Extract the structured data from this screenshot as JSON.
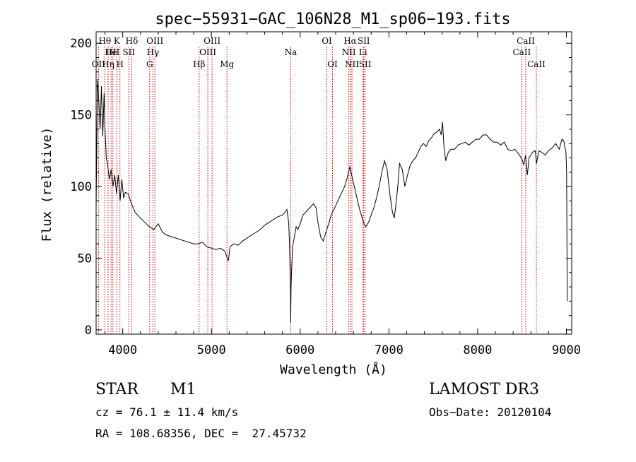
{
  "chart_data": {
    "type": "line",
    "title": "spec−55931−GAC_106N28_M1_sp06−193.fits",
    "xlabel": "Wavelength (Å)",
    "ylabel": "Flux (relative)",
    "xlim": [
      3700,
      9060
    ],
    "ylim": [
      -3,
      208
    ],
    "x_ticks": [
      4000,
      5000,
      6000,
      7000,
      8000,
      9000
    ],
    "y_ticks": [
      0,
      50,
      100,
      150,
      200
    ],
    "series": [
      {
        "name": "spectrum",
        "color": "#000000",
        "x": [
          3700,
          3715,
          3730,
          3745,
          3760,
          3775,
          3790,
          3800,
          3815,
          3830,
          3850,
          3870,
          3890,
          3910,
          3930,
          3950,
          3970,
          3990,
          4010,
          4030,
          4060,
          4100,
          4140,
          4200,
          4250,
          4300,
          4350,
          4400,
          4450,
          4500,
          4550,
          4600,
          4650,
          4700,
          4750,
          4800,
          4850,
          4900,
          4950,
          5000,
          5050,
          5100,
          5150,
          5190,
          5210,
          5250,
          5300,
          5350,
          5400,
          5450,
          5500,
          5550,
          5600,
          5650,
          5700,
          5750,
          5800,
          5830,
          5850,
          5870,
          5880,
          5890,
          5893,
          5897,
          5905,
          5915,
          5935,
          5955,
          5975,
          6000,
          6030,
          6060,
          6090,
          6120,
          6150,
          6180,
          6200,
          6230,
          6260,
          6290,
          6320,
          6350,
          6380,
          6410,
          6440,
          6470,
          6500,
          6530,
          6560,
          6580,
          6610,
          6640,
          6670,
          6700,
          6720,
          6740,
          6770,
          6800,
          6830,
          6860,
          6890,
          6920,
          6950,
          6980,
          7010,
          7040,
          7060,
          7080,
          7100,
          7120,
          7150,
          7180,
          7210,
          7240,
          7270,
          7300,
          7330,
          7360,
          7390,
          7420,
          7450,
          7480,
          7510,
          7540,
          7570,
          7590,
          7605,
          7620,
          7640,
          7670,
          7700,
          7740,
          7780,
          7820,
          7860,
          7900,
          7940,
          7980,
          8020,
          8060,
          8100,
          8140,
          8180,
          8220,
          8260,
          8300,
          8340,
          8380,
          8420,
          8460,
          8500,
          8520,
          8540,
          8560,
          8580,
          8620,
          8650,
          8663,
          8690,
          8720,
          8760,
          8800,
          8840,
          8880,
          8920,
          8950,
          8970,
          8985,
          8995,
          9003,
          9010
        ],
        "y": [
          85,
          175,
          160,
          140,
          170,
          135,
          165,
          140,
          120,
          115,
          105,
          112,
          100,
          108,
          95,
          108,
          90,
          105,
          92,
          96,
          95,
          88,
          82,
          78,
          75,
          72,
          70,
          74,
          68,
          66,
          65,
          64,
          63,
          62,
          61,
          60,
          60,
          61,
          58,
          57,
          56,
          57,
          55,
          48,
          58,
          60,
          59,
          62,
          64,
          66,
          68,
          70,
          73,
          75,
          77,
          79,
          80,
          82,
          84,
          75,
          60,
          30,
          5,
          30,
          45,
          58,
          65,
          72,
          70,
          74,
          80,
          82,
          84,
          86,
          88,
          85,
          75,
          65,
          62,
          68,
          74,
          80,
          84,
          88,
          92,
          96,
          100,
          106,
          114,
          108,
          100,
          92,
          84,
          78,
          74,
          72,
          75,
          80,
          85,
          92,
          100,
          110,
          118,
          112,
          95,
          82,
          78,
          88,
          100,
          116,
          112,
          100,
          108,
          115,
          118,
          120,
          124,
          128,
          130,
          128,
          132,
          134,
          137,
          138,
          140,
          136,
          145,
          128,
          118,
          124,
          126,
          126,
          129,
          130,
          131,
          129,
          131,
          133,
          133,
          136,
          136,
          133,
          131,
          131,
          129,
          131,
          126,
          125,
          126,
          123,
          119,
          115,
          122,
          108,
          120,
          124,
          125,
          116,
          125,
          124,
          122,
          125,
          127,
          130,
          126,
          133,
          132,
          127,
          125,
          110,
          20
        ]
      }
    ],
    "line_markers": [
      {
        "wavelength": 3727,
        "label": "OII",
        "row": 3
      },
      {
        "wavelength": 3798,
        "label": "Hθ",
        "row": 1
      },
      {
        "wavelength": 3835,
        "label": "Hη",
        "row": 3
      },
      {
        "wavelength": 3869,
        "label": "He",
        "row": 2
      },
      {
        "wavelength": 3889,
        "label": "OII",
        "row": 2
      },
      {
        "wavelength": 3934,
        "label": "K",
        "row": 1
      },
      {
        "wavelength": 3968,
        "label": "H",
        "row": 3
      },
      {
        "wavelength": 4069,
        "label": "SII",
        "row": 2
      },
      {
        "wavelength": 4102,
        "label": "Hδ",
        "row": 1
      },
      {
        "wavelength": 4304,
        "label": "G",
        "row": 3
      },
      {
        "wavelength": 4340,
        "label": "Hγ",
        "row": 2
      },
      {
        "wavelength": 4363,
        "label": "OIII",
        "row": 1
      },
      {
        "wavelength": 4861,
        "label": "Hβ",
        "row": 3
      },
      {
        "wavelength": 4959,
        "label": "OIII",
        "row": 2
      },
      {
        "wavelength": 5007,
        "label": "OIII",
        "row": 1
      },
      {
        "wavelength": 5175,
        "label": "Mg",
        "row": 3
      },
      {
        "wavelength": 5893,
        "label": "Na",
        "row": 2
      },
      {
        "wavelength": 6300,
        "label": "OI",
        "row": 1
      },
      {
        "wavelength": 6364,
        "label": "OI",
        "row": 3
      },
      {
        "wavelength": 6548,
        "label": "NII",
        "row": 2
      },
      {
        "wavelength": 6563,
        "label": "Hα",
        "row": 1
      },
      {
        "wavelength": 6583,
        "label": "NII",
        "row": 3
      },
      {
        "wavelength": 6708,
        "label": "Li",
        "row": 2
      },
      {
        "wavelength": 6716,
        "label": "SII",
        "row": 1
      },
      {
        "wavelength": 6731,
        "label": "SII",
        "row": 3
      },
      {
        "wavelength": 8498,
        "label": "CaII",
        "row": 2
      },
      {
        "wavelength": 8542,
        "label": "CaII",
        "row": 1
      },
      {
        "wavelength": 8662,
        "label": "CaII",
        "row": 3
      }
    ]
  },
  "footer": {
    "object_class": "STAR",
    "subclass": "M1",
    "survey": "LAMOST DR3",
    "redshift_line": "cz = 76.1 ± 11.4 km/s",
    "obs_date_line": "Obs−Date: 20120104",
    "coords_line": "RA = 108.68356, DEC =  27.45732"
  },
  "colors": {
    "spectrum": "#000000",
    "marker_line": "#cc0000",
    "axes": "#000000",
    "background": "#ffffff"
  }
}
